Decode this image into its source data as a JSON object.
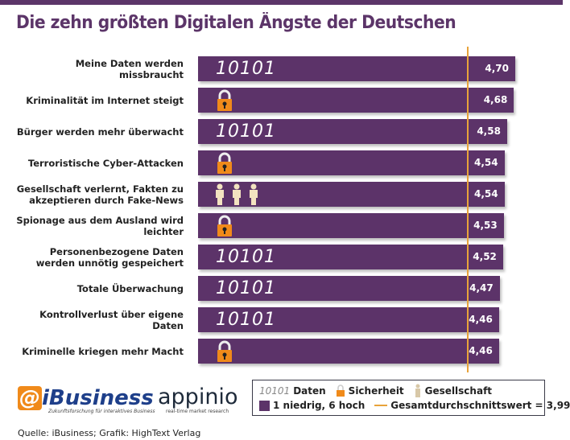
{
  "chart_data": {
    "type": "bar",
    "orientation": "horizontal",
    "title": "Die zehn größten Digitalen Ängste der Deutschen",
    "categories": [
      "Meine Daten werden missbraucht",
      "Kriminalität im Internet steigt",
      "Bürger werden mehr überwacht",
      "Terroristische Cyber-Attacken",
      "Gesellschaft verlernt, Fakten zu akzeptieren durch Fake-News",
      "Spionage aus dem Ausland wird leichter",
      "Personenbezogene Daten werden unnötig gespeichert",
      "Totale Überwachung",
      "Kontrollverlust über eigene Daten",
      "Kriminelle kriegen mehr Macht"
    ],
    "values": [
      4.7,
      4.68,
      4.58,
      4.54,
      4.54,
      4.53,
      4.52,
      4.47,
      4.46,
      4.46
    ],
    "value_labels": [
      "4,70",
      "4,68",
      "4,58",
      "4,54",
      "4,54",
      "4,53",
      "4,52",
      "4,47",
      "4,46",
      "4,46"
    ],
    "category_type": [
      "daten",
      "sicherheit",
      "daten",
      "sicherheit",
      "gesellschaft",
      "sicherheit",
      "daten",
      "daten",
      "daten",
      "sicherheit"
    ],
    "average": 3.99,
    "xlim": [
      0,
      4.8
    ],
    "bar_color": "#5c3369",
    "average_color": "#e8a33a",
    "lock_color": "#f08a1a",
    "people_color": "#f3e3c0"
  },
  "icon_text": {
    "daten": "10101"
  },
  "legend": {
    "daten": "Daten",
    "sicherheit": "Sicherheit",
    "gesellschaft": "Gesellschaft",
    "scale": "1 niedrig, 6 hoch",
    "average": "Gesamtdurchschnittswert = 3,99"
  },
  "logos": {
    "ibusiness": "iBusiness",
    "ibusiness_sub": "Zukunftsforschung für interaktives Business",
    "appinio": "appinio",
    "appinio_sub": "real-time market research"
  },
  "source": "Quelle: iBusiness; Grafik: HighText Verlag"
}
